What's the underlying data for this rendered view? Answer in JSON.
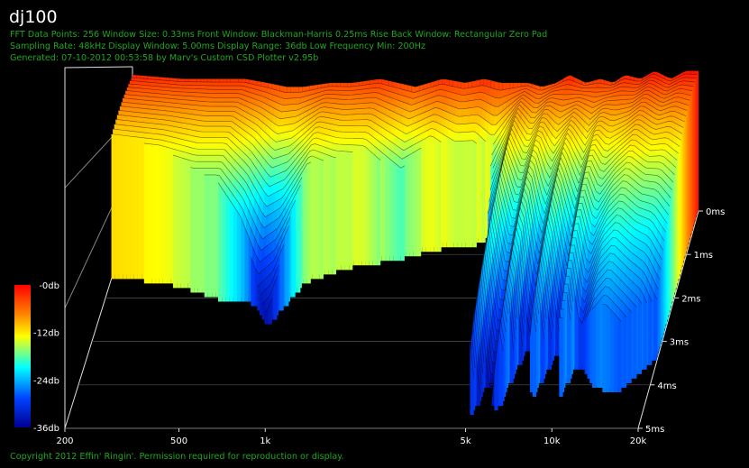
{
  "header": {
    "title": "dj100",
    "info_lines": [
      "FFT Data Points: 256   Window Size: 0.33ms    Front Window: Blackman-Harris 0.25ms Rise    Back Window: Rectangular Zero Pad",
      "Sampling Rate: 48kHz   Display Window: 5.00ms    Display Range: 36db   Low Frequency Min: 200Hz",
      "Generated: 07-10-2012 00:53:58 by Marv's Custom CSD Plotter v2.95b"
    ]
  },
  "footer": {
    "copyright": "Copyright 2012 Effin' Ringin'. Permission required for reproduction or display."
  },
  "chart_data": {
    "type": "heatmap",
    "subtype": "cumulative-spectral-decay-waterfall",
    "x_axis": {
      "scale": "log",
      "range_hz": [
        200,
        20000
      ],
      "tick_labels": [
        "200",
        "500",
        "1k",
        "5k",
        "10k",
        "20k"
      ],
      "tick_values": [
        200,
        500,
        1000,
        5000,
        10000,
        20000
      ]
    },
    "z_axis": {
      "range_ms": [
        0,
        5
      ],
      "tick_labels": [
        "0ms",
        "1ms",
        "2ms",
        "3ms",
        "4ms",
        "5ms"
      ],
      "tick_values": [
        0,
        1,
        2,
        3,
        4,
        5
      ]
    },
    "colorbar": {
      "range_db": [
        -36,
        0
      ],
      "tick_labels": [
        "-0db",
        "-12db",
        "-24db",
        "-36db"
      ],
      "tick_values": [
        0,
        -12,
        -24,
        -36
      ],
      "colors": [
        "#ff0000",
        "#ff8000",
        "#ffff00",
        "#00ffff",
        "#0040ff",
        "#000090"
      ]
    },
    "frequencies_hz": [
      200,
      300,
      400,
      500,
      600,
      700,
      800,
      1000,
      1200,
      1500,
      2000,
      2500,
      3000,
      3500,
      4000,
      5000,
      5600,
      6300,
      7000,
      8000,
      9000,
      10000,
      11000,
      12500,
      14000,
      16000,
      18000,
      20000
    ],
    "initial_level_db": [
      -2,
      -3,
      -3,
      -3,
      -4,
      -5,
      -5,
      -4,
      -4,
      -3,
      -5,
      -3,
      -4,
      -3,
      -4,
      -4,
      -5,
      -4,
      -2,
      -4,
      -3,
      -4,
      -2,
      -3,
      -1,
      -3,
      -1,
      -1
    ],
    "decay_db_per_ms": [
      6,
      6,
      7,
      7,
      9,
      12,
      11,
      7,
      8,
      9,
      12,
      11,
      13,
      14,
      17,
      5,
      8,
      5,
      10,
      5,
      9,
      5,
      8,
      6,
      6,
      6,
      7,
      8
    ],
    "decay_time_ms": [
      1.6,
      1.7,
      1.9,
      2.1,
      2.1,
      2.3,
      2.8,
      1.7,
      1.5,
      1.3,
      1.2,
      1.0,
      0.9,
      0.9,
      0.7,
      4.9,
      4.3,
      4.8,
      3.2,
      4.6,
      3.4,
      4.5,
      3.6,
      4.1,
      4.2,
      4.3,
      3.8,
      3.5
    ]
  }
}
